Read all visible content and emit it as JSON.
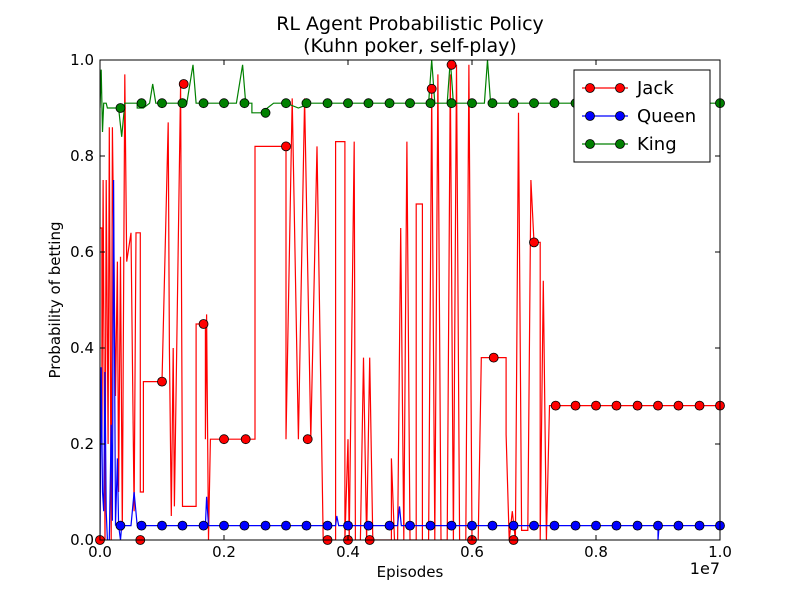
{
  "chart_data": {
    "type": "line",
    "title": [
      "RL Agent Probabilistic Policy",
      "(Kuhn poker, self-play)"
    ],
    "xlabel": "Episodes",
    "ylabel": "Probability of betting",
    "x_offset_label": "1e7",
    "xlim": [
      0,
      1.0
    ],
    "ylim": [
      0,
      1.0
    ],
    "x_ticks": [
      "0.0",
      "0.2",
      "0.4",
      "0.6",
      "0.8",
      "1.0"
    ],
    "y_ticks": [
      "0.0",
      "0.2",
      "0.4",
      "0.6",
      "0.8",
      "1.0"
    ],
    "legend_position": "top-right",
    "grid": false,
    "series": [
      {
        "name": "Jack",
        "color": "#ff0000",
        "line": [
          [
            0,
            0.65
          ],
          [
            0.003,
            0.65
          ],
          [
            0.003,
            0.2
          ],
          [
            0.005,
            0.75
          ],
          [
            0.008,
            0.0
          ],
          [
            0.01,
            0.75
          ],
          [
            0.013,
            0.2
          ],
          [
            0.015,
            0.86
          ],
          [
            0.018,
            0.0
          ],
          [
            0.02,
            0.86
          ],
          [
            0.025,
            0.3
          ],
          [
            0.028,
            0.58
          ],
          [
            0.03,
            0.1
          ],
          [
            0.033,
            0.59
          ],
          [
            0.036,
            0.02
          ],
          [
            0.04,
            0.97
          ],
          [
            0.043,
            0.58
          ],
          [
            0.05,
            0.64
          ],
          [
            0.055,
            0.06
          ],
          [
            0.058,
            0.64
          ],
          [
            0.065,
            0.64
          ],
          [
            0.065,
            0.1
          ],
          [
            0.07,
            0.1
          ],
          [
            0.07,
            0.33
          ],
          [
            0.1,
            0.33
          ],
          [
            0.1,
            0.33
          ],
          [
            0.11,
            0.87
          ],
          [
            0.112,
            0.4
          ],
          [
            0.115,
            0.05
          ],
          [
            0.118,
            0.4
          ],
          [
            0.12,
            0.07
          ],
          [
            0.13,
            0.95
          ],
          [
            0.133,
            0.07
          ],
          [
            0.155,
            0.07
          ],
          [
            0.155,
            0.45
          ],
          [
            0.17,
            0.45
          ],
          [
            0.17,
            0.21
          ],
          [
            0.172,
            0.47
          ],
          [
            0.175,
            0.0
          ],
          [
            0.178,
            0.21
          ],
          [
            0.25,
            0.21
          ],
          [
            0.25,
            0.82
          ],
          [
            0.3,
            0.82
          ],
          [
            0.3,
            0.21
          ],
          [
            0.31,
            0.92
          ],
          [
            0.32,
            0.21
          ],
          [
            0.33,
            0.92
          ],
          [
            0.34,
            0.21
          ],
          [
            0.35,
            0.82
          ],
          [
            0.36,
            0.0
          ],
          [
            0.38,
            0.0
          ],
          [
            0.38,
            0.83
          ],
          [
            0.395,
            0.83
          ],
          [
            0.395,
            0.0
          ],
          [
            0.4,
            0.21
          ],
          [
            0.402,
            0.0
          ],
          [
            0.41,
            0.83
          ],
          [
            0.412,
            0.0
          ],
          [
            0.42,
            0.0
          ],
          [
            0.425,
            0.38
          ],
          [
            0.43,
            0.0
          ],
          [
            0.435,
            0.38
          ],
          [
            0.44,
            0.0
          ],
          [
            0.47,
            0.0
          ],
          [
            0.47,
            0.17
          ],
          [
            0.475,
            0.0
          ],
          [
            0.48,
            0.0
          ],
          [
            0.485,
            0.65
          ],
          [
            0.49,
            0.0
          ],
          [
            0.495,
            0.83
          ],
          [
            0.5,
            0.0
          ],
          [
            0.51,
            0.0
          ],
          [
            0.51,
            0.7
          ],
          [
            0.52,
            0.7
          ],
          [
            0.52,
            0.0
          ],
          [
            0.53,
            0.0
          ],
          [
            0.535,
            0.93
          ],
          [
            0.54,
            0.0
          ],
          [
            0.545,
            0.97
          ],
          [
            0.55,
            0.0
          ],
          [
            0.56,
            0.0
          ],
          [
            0.565,
            0.97
          ],
          [
            0.57,
            0.0
          ],
          [
            0.575,
            0.99
          ],
          [
            0.58,
            0.0
          ],
          [
            0.59,
            0.0
          ],
          [
            0.595,
            0.99
          ],
          [
            0.6,
            0.0
          ],
          [
            0.61,
            0.0
          ],
          [
            0.615,
            0.38
          ],
          [
            0.655,
            0.38
          ],
          [
            0.655,
            0.22
          ],
          [
            0.66,
            0.0
          ],
          [
            0.665,
            0.06
          ],
          [
            0.67,
            0.0
          ],
          [
            0.675,
            0.89
          ],
          [
            0.68,
            0.02
          ],
          [
            0.69,
            0.02
          ],
          [
            0.695,
            0.75
          ],
          [
            0.7,
            0.62
          ],
          [
            0.71,
            0.62
          ],
          [
            0.71,
            0.0
          ],
          [
            0.715,
            0.54
          ],
          [
            0.72,
            0.0
          ],
          [
            0.725,
            0.28
          ],
          [
            1.0,
            0.28
          ]
        ],
        "markers": [
          [
            0.0,
            0.0
          ],
          [
            0.065,
            0.0
          ],
          [
            0.1,
            0.33
          ],
          [
            0.135,
            0.95
          ],
          [
            0.167,
            0.45
          ],
          [
            0.2,
            0.21
          ],
          [
            0.235,
            0.21
          ],
          [
            0.3,
            0.82
          ],
          [
            0.335,
            0.21
          ],
          [
            0.367,
            0.0
          ],
          [
            0.4,
            0.0
          ],
          [
            0.435,
            0.0
          ],
          [
            0.535,
            0.94
          ],
          [
            0.567,
            0.99
          ],
          [
            0.6,
            0.0
          ],
          [
            0.635,
            0.38
          ],
          [
            0.667,
            0.0
          ],
          [
            0.7,
            0.62
          ],
          [
            0.735,
            0.28
          ],
          [
            0.767,
            0.28
          ],
          [
            0.8,
            0.28
          ],
          [
            0.833,
            0.28
          ],
          [
            0.867,
            0.28
          ],
          [
            0.9,
            0.28
          ],
          [
            0.933,
            0.28
          ],
          [
            0.967,
            0.28
          ],
          [
            1.0,
            0.28
          ]
        ]
      },
      {
        "name": "Queen",
        "color": "#0000ff",
        "line": [
          [
            0,
            0.0
          ],
          [
            0.002,
            0.36
          ],
          [
            0.004,
            0.1
          ],
          [
            0.006,
            0.06
          ],
          [
            0.008,
            0.35
          ],
          [
            0.01,
            0.06
          ],
          [
            0.012,
            0.0
          ],
          [
            0.015,
            0.0
          ],
          [
            0.018,
            0.24
          ],
          [
            0.02,
            0.04
          ],
          [
            0.022,
            0.75
          ],
          [
            0.025,
            0.03
          ],
          [
            0.028,
            0.17
          ],
          [
            0.03,
            0.03
          ],
          [
            0.033,
            0.0
          ],
          [
            0.035,
            0.03
          ],
          [
            0.04,
            0.03
          ],
          [
            0.05,
            0.03
          ],
          [
            0.055,
            0.1
          ],
          [
            0.06,
            0.03
          ],
          [
            0.17,
            0.03
          ],
          [
            0.172,
            0.09
          ],
          [
            0.175,
            0.03
          ],
          [
            0.38,
            0.03
          ],
          [
            0.382,
            0.05
          ],
          [
            0.385,
            0.03
          ],
          [
            0.48,
            0.03
          ],
          [
            0.483,
            0.07
          ],
          [
            0.486,
            0.03
          ],
          [
            0.9,
            0.03
          ],
          [
            0.9,
            0.0
          ],
          [
            0.902,
            0.03
          ],
          [
            1.0,
            0.03
          ]
        ],
        "markers": [
          [
            0.033,
            0.03
          ],
          [
            0.067,
            0.03
          ],
          [
            0.1,
            0.03
          ],
          [
            0.133,
            0.03
          ],
          [
            0.167,
            0.03
          ],
          [
            0.2,
            0.03
          ],
          [
            0.233,
            0.03
          ],
          [
            0.267,
            0.03
          ],
          [
            0.3,
            0.03
          ],
          [
            0.333,
            0.03
          ],
          [
            0.367,
            0.03
          ],
          [
            0.4,
            0.03
          ],
          [
            0.433,
            0.03
          ],
          [
            0.467,
            0.03
          ],
          [
            0.5,
            0.03
          ],
          [
            0.533,
            0.03
          ],
          [
            0.567,
            0.03
          ],
          [
            0.6,
            0.03
          ],
          [
            0.633,
            0.03
          ],
          [
            0.667,
            0.03
          ],
          [
            0.7,
            0.03
          ],
          [
            0.733,
            0.03
          ],
          [
            0.767,
            0.03
          ],
          [
            0.8,
            0.03
          ],
          [
            0.833,
            0.03
          ],
          [
            0.867,
            0.03
          ],
          [
            0.9,
            0.03
          ],
          [
            0.933,
            0.03
          ],
          [
            0.967,
            0.03
          ],
          [
            1.0,
            0.03
          ]
        ]
      },
      {
        "name": "King",
        "color": "#008000",
        "line": [
          [
            0,
            0.9
          ],
          [
            0.002,
            0.98
          ],
          [
            0.004,
            0.85
          ],
          [
            0.006,
            0.91
          ],
          [
            0.01,
            0.91
          ],
          [
            0.012,
            0.9
          ],
          [
            0.02,
            0.9
          ],
          [
            0.03,
            0.9
          ],
          [
            0.035,
            0.84
          ],
          [
            0.04,
            0.91
          ],
          [
            0.06,
            0.91
          ],
          [
            0.06,
            0.9
          ],
          [
            0.07,
            0.9
          ],
          [
            0.08,
            0.91
          ],
          [
            0.085,
            0.95
          ],
          [
            0.09,
            0.91
          ],
          [
            0.14,
            0.91
          ],
          [
            0.15,
            0.99
          ],
          [
            0.155,
            0.91
          ],
          [
            0.22,
            0.91
          ],
          [
            0.23,
            0.99
          ],
          [
            0.235,
            0.91
          ],
          [
            0.245,
            0.91
          ],
          [
            0.245,
            0.89
          ],
          [
            0.26,
            0.89
          ],
          [
            0.27,
            0.9
          ],
          [
            0.28,
            0.91
          ],
          [
            0.3,
            0.91
          ],
          [
            0.32,
            0.9
          ],
          [
            0.34,
            0.91
          ],
          [
            0.53,
            0.91
          ],
          [
            0.535,
            1.0
          ],
          [
            0.54,
            0.91
          ],
          [
            0.56,
            0.91
          ],
          [
            0.565,
            1.0
          ],
          [
            0.57,
            0.91
          ],
          [
            0.62,
            0.91
          ],
          [
            0.625,
            1.0
          ],
          [
            0.63,
            0.91
          ],
          [
            1.0,
            0.91
          ]
        ],
        "markers": [
          [
            0.033,
            0.9
          ],
          [
            0.067,
            0.91
          ],
          [
            0.1,
            0.91
          ],
          [
            0.133,
            0.91
          ],
          [
            0.167,
            0.91
          ],
          [
            0.2,
            0.91
          ],
          [
            0.233,
            0.91
          ],
          [
            0.267,
            0.89
          ],
          [
            0.3,
            0.91
          ],
          [
            0.333,
            0.91
          ],
          [
            0.367,
            0.91
          ],
          [
            0.4,
            0.91
          ],
          [
            0.433,
            0.91
          ],
          [
            0.467,
            0.91
          ],
          [
            0.5,
            0.91
          ],
          [
            0.533,
            0.91
          ],
          [
            0.567,
            0.91
          ],
          [
            0.6,
            0.91
          ],
          [
            0.633,
            0.91
          ],
          [
            0.667,
            0.91
          ],
          [
            0.7,
            0.91
          ],
          [
            0.733,
            0.91
          ],
          [
            0.767,
            0.91
          ],
          [
            0.8,
            0.91
          ],
          [
            0.833,
            0.91
          ],
          [
            0.867,
            0.91
          ],
          [
            0.9,
            0.91
          ],
          [
            0.933,
            0.91
          ],
          [
            0.967,
            0.91
          ],
          [
            1.0,
            0.91
          ]
        ]
      }
    ]
  }
}
